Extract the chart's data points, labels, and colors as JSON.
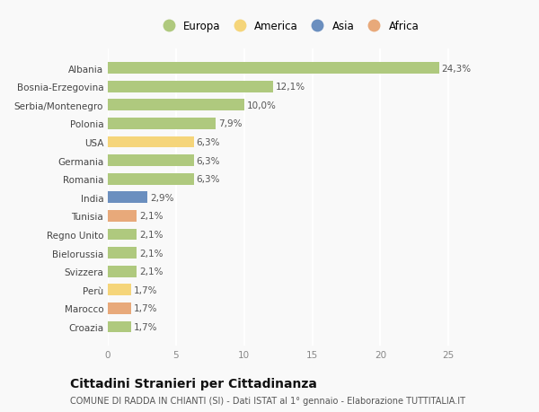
{
  "categories": [
    "Albania",
    "Bosnia-Erzegovina",
    "Serbia/Montenegro",
    "Polonia",
    "USA",
    "Germania",
    "Romania",
    "India",
    "Tunisia",
    "Regno Unito",
    "Bielorussia",
    "Svizzera",
    "Perù",
    "Marocco",
    "Croazia"
  ],
  "values": [
    24.3,
    12.1,
    10.0,
    7.9,
    6.3,
    6.3,
    6.3,
    2.9,
    2.1,
    2.1,
    2.1,
    2.1,
    1.7,
    1.7,
    1.7
  ],
  "labels": [
    "24,3%",
    "12,1%",
    "10,0%",
    "7,9%",
    "6,3%",
    "6,3%",
    "6,3%",
    "2,9%",
    "2,1%",
    "2,1%",
    "2,1%",
    "2,1%",
    "1,7%",
    "1,7%",
    "1,7%"
  ],
  "bar_colors": [
    "#afc97e",
    "#afc97e",
    "#afc97e",
    "#afc97e",
    "#f5d57a",
    "#afc97e",
    "#afc97e",
    "#6b8fbf",
    "#e8a97a",
    "#afc97e",
    "#afc97e",
    "#afc97e",
    "#f5d57a",
    "#e8a97a",
    "#afc97e"
  ],
  "legend_labels": [
    "Europa",
    "America",
    "Asia",
    "Africa"
  ],
  "legend_colors": [
    "#afc97e",
    "#f5d57a",
    "#6b8fbf",
    "#e8a97a"
  ],
  "xlim": [
    0,
    26.5
  ],
  "xticks": [
    0,
    5,
    10,
    15,
    20,
    25
  ],
  "title": "Cittadini Stranieri per Cittadinanza",
  "subtitle": "COMUNE DI RADDA IN CHIANTI (SI) - Dati ISTAT al 1° gennaio - Elaborazione TUTTITALIA.IT",
  "bg_color": "#f9f9f9",
  "grid_color": "#ffffff",
  "label_fontsize": 7.5,
  "tick_fontsize": 7.5,
  "title_fontsize": 10,
  "subtitle_fontsize": 7,
  "legend_fontsize": 8.5,
  "bar_height": 0.62
}
